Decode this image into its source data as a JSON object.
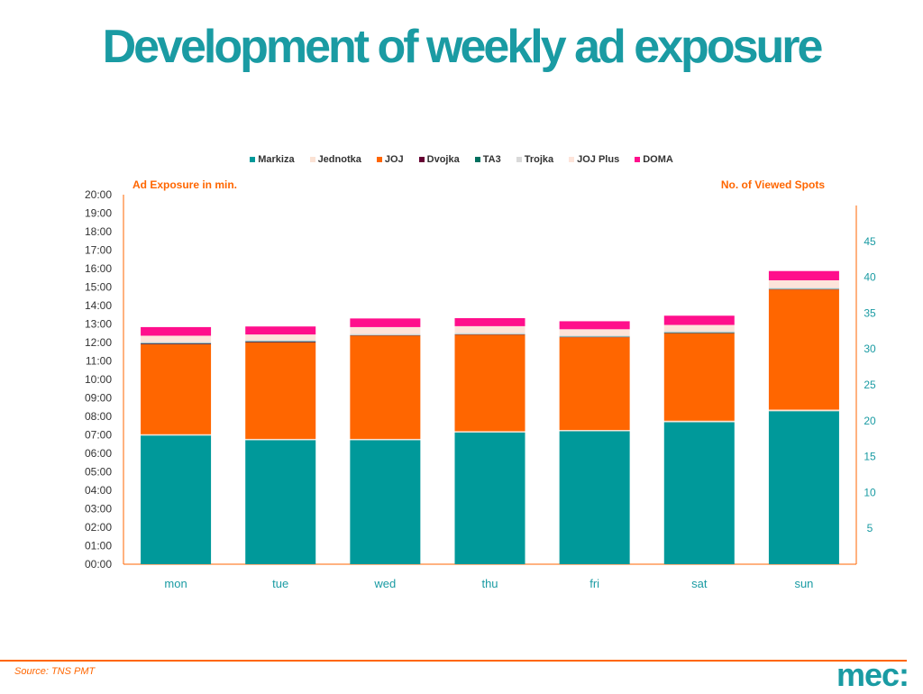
{
  "title": "Development of weekly ad exposure",
  "left_axis_title": "Ad Exposure in min.",
  "right_axis_title": "No. of Viewed Spots",
  "source": "Source: TNS PMT",
  "logo": "mec:",
  "colors": {
    "accent": "#1a9ba3",
    "orange": "#ff6600"
  },
  "chart_data": {
    "type": "bar",
    "stacked": true,
    "categories": [
      "mon",
      "tue",
      "wed",
      "thu",
      "fri",
      "sat",
      "sun"
    ],
    "ylim_minutes": [
      0,
      1200
    ],
    "y_ticks": [
      "00:00",
      "01:00",
      "02:00",
      "03:00",
      "04:00",
      "05:00",
      "06:00",
      "07:00",
      "08:00",
      "09:00",
      "10:00",
      "11:00",
      "12:00",
      "13:00",
      "14:00",
      "15:00",
      "16:00",
      "17:00",
      "18:00",
      "19:00",
      "20:00"
    ],
    "right_axis": {
      "ylim": [
        0,
        50
      ],
      "ticks": [
        5,
        10,
        15,
        20,
        25,
        30,
        35,
        40,
        45
      ]
    },
    "series": [
      {
        "name": "Markiza",
        "color": "#00999a",
        "values": [
          418,
          403,
          403,
          428,
          432,
          461,
          497
        ]
      },
      {
        "name": "Jednotka",
        "color": "#fbe2d4",
        "values": [
          4,
          4,
          4,
          4,
          4,
          5,
          5
        ]
      },
      {
        "name": "JOJ",
        "color": "#ff6600",
        "values": [
          292,
          313,
          335,
          313,
          301,
          284,
          390
        ]
      },
      {
        "name": "Dvojka",
        "color": "#660033",
        "values": [
          2,
          2,
          1,
          1,
          1,
          1,
          1
        ]
      },
      {
        "name": "TA3",
        "color": "#00705f",
        "values": [
          2,
          2,
          1,
          1,
          1,
          2,
          1
        ]
      },
      {
        "name": "Trojka",
        "color": "#d9d9d9",
        "values": [
          4,
          4,
          4,
          4,
          4,
          4,
          4
        ]
      },
      {
        "name": "JOJ Plus",
        "color": "#fde4da",
        "values": [
          20,
          18,
          22,
          22,
          20,
          20,
          24
        ]
      },
      {
        "name": "DOMA",
        "color": "#ff0f8c",
        "values": [
          28,
          26,
          28,
          26,
          26,
          30,
          30
        ]
      }
    ]
  }
}
